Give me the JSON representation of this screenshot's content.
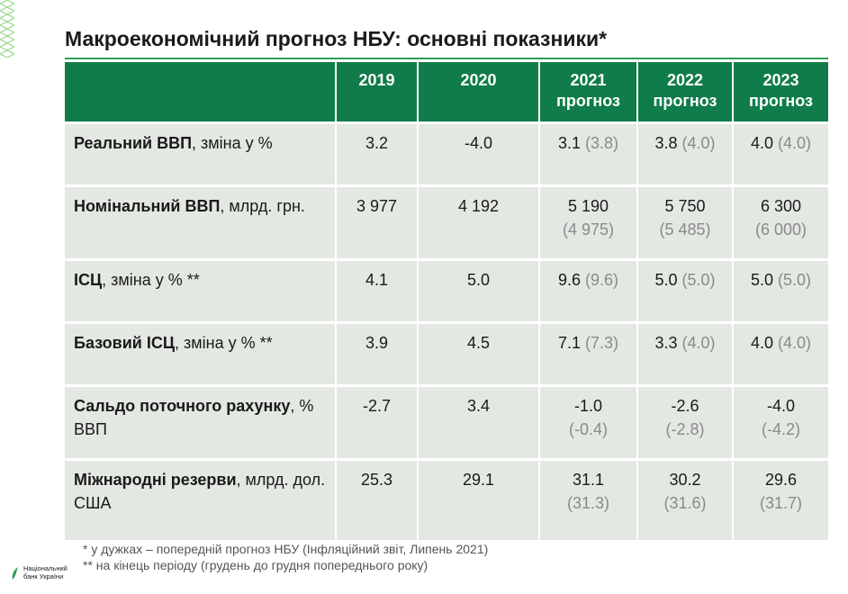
{
  "title": "Макроекономічний прогноз НБУ: основні показники*",
  "header": {
    "columns": [
      {
        "year": "2019",
        "sub": ""
      },
      {
        "year": "2020",
        "sub": ""
      },
      {
        "year": "2021",
        "sub": "прогноз"
      },
      {
        "year": "2022",
        "sub": "прогноз"
      },
      {
        "year": "2023",
        "sub": "прогноз"
      }
    ]
  },
  "rows": [
    {
      "label_bold": "Реальний ВВП",
      "label_rest": ", зміна у %",
      "cells": [
        {
          "cur": "3.2",
          "prev": ""
        },
        {
          "cur": "-4.0",
          "prev": ""
        },
        {
          "cur": "3.1",
          "prev": "(3.8)"
        },
        {
          "cur": "3.8",
          "prev": "(4.0)"
        },
        {
          "cur": "4.0",
          "prev": "(4.0)"
        }
      ]
    },
    {
      "label_bold": "Номінальний ВВП",
      "label_rest": ", млрд. грн.",
      "cells": [
        {
          "cur": "3 977",
          "prev": ""
        },
        {
          "cur": "4 192",
          "prev": ""
        },
        {
          "cur": "5 190",
          "prev": "(4 975)"
        },
        {
          "cur": "5 750",
          "prev": "(5 485)"
        },
        {
          "cur": "6 300",
          "prev": "(6 000)"
        }
      ]
    },
    {
      "label_bold": "ІСЦ",
      "label_rest": ", зміна у % **",
      "cells": [
        {
          "cur": "4.1",
          "prev": ""
        },
        {
          "cur": "5.0",
          "prev": ""
        },
        {
          "cur": "9.6",
          "prev": "(9.6)"
        },
        {
          "cur": "5.0",
          "prev": "(5.0)"
        },
        {
          "cur": "5.0",
          "prev": "(5.0)"
        }
      ]
    },
    {
      "label_bold": "Базовий ІСЦ",
      "label_rest": ", зміна у % **",
      "cells": [
        {
          "cur": "3.9",
          "prev": ""
        },
        {
          "cur": "4.5",
          "prev": ""
        },
        {
          "cur": "7.1",
          "prev": "(7.3)"
        },
        {
          "cur": "3.3",
          "prev": "(4.0)"
        },
        {
          "cur": "4.0",
          "prev": "(4.0)"
        }
      ]
    },
    {
      "label_bold": "Сальдо поточного рахунку",
      "label_rest": ", % ВВП",
      "cells": [
        {
          "cur": "-2.7",
          "prev": ""
        },
        {
          "cur": "3.4",
          "prev": ""
        },
        {
          "cur": "-1.0",
          "prev": "(-0.4)"
        },
        {
          "cur": "-2.6",
          "prev": "(-2.8)"
        },
        {
          "cur": "-4.0",
          "prev": "(-4.2)"
        }
      ]
    },
    {
      "label_bold": "Міжнародні резерви",
      "label_rest": ", млрд. дол. США",
      "cells": [
        {
          "cur": "25.3",
          "prev": ""
        },
        {
          "cur": "29.1",
          "prev": ""
        },
        {
          "cur": "31.1",
          "prev": "(31.3)"
        },
        {
          "cur": "30.2",
          "prev": "(31.6)"
        },
        {
          "cur": "29.6",
          "prev": "(31.7)"
        }
      ]
    }
  ],
  "footnotes": {
    "note1": "* у дужках – попередній прогноз НБУ (Інфляційний звіт, Липень 2021)",
    "note2": "** на кінець періоду (грудень до грудня попереднього року)"
  },
  "logo": {
    "line1": "Національний",
    "line2": "банк України",
    "icon": "nbu-leaf-icon"
  },
  "colors": {
    "header_bg": "#0f7c4a",
    "row_bg": "#e4e8e3",
    "prev_text": "#8a8a8a",
    "accent": "#2e9e57"
  }
}
